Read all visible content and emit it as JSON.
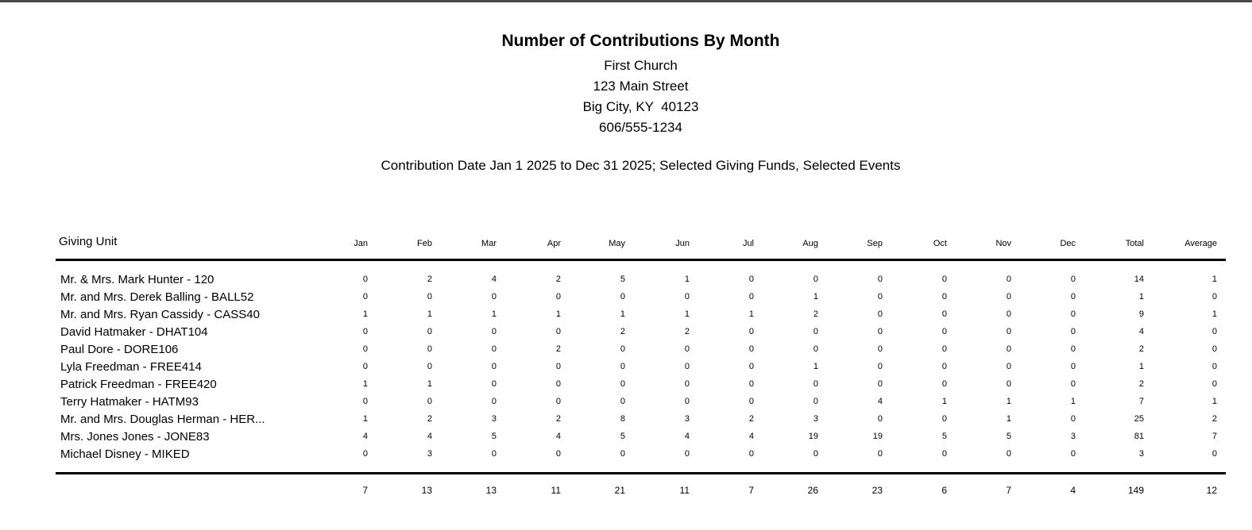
{
  "report": {
    "title": "Number of Contributions By Month",
    "org_name": "First Church",
    "address_line1": "123 Main Street",
    "address_line2": "Big City, KY  40123",
    "phone": "606/555-1234",
    "criteria": "Contribution Date Jan 1 2025 to Dec 31 2025; Selected Giving Funds, Selected Events"
  },
  "table": {
    "unit_header": "Giving Unit",
    "columns": [
      "Jan",
      "Feb",
      "Mar",
      "Apr",
      "May",
      "Jun",
      "Jul",
      "Aug",
      "Sep",
      "Oct",
      "Nov",
      "Dec",
      "Total",
      "Average"
    ],
    "rows": [
      {
        "name": "Mr. & Mrs. Mark Hunter - 120",
        "values": [
          0,
          2,
          4,
          2,
          5,
          1,
          0,
          0,
          0,
          0,
          0,
          0,
          14,
          1
        ]
      },
      {
        "name": "Mr. and Mrs. Derek Balling - BALL52",
        "values": [
          0,
          0,
          0,
          0,
          0,
          0,
          0,
          1,
          0,
          0,
          0,
          0,
          1,
          0
        ]
      },
      {
        "name": "Mr. and Mrs. Ryan Cassidy - CASS40",
        "values": [
          1,
          1,
          1,
          1,
          1,
          1,
          1,
          2,
          0,
          0,
          0,
          0,
          9,
          1
        ]
      },
      {
        "name": "David Hatmaker - DHAT104",
        "values": [
          0,
          0,
          0,
          0,
          2,
          2,
          0,
          0,
          0,
          0,
          0,
          0,
          4,
          0
        ]
      },
      {
        "name": "Paul Dore - DORE106",
        "values": [
          0,
          0,
          0,
          2,
          0,
          0,
          0,
          0,
          0,
          0,
          0,
          0,
          2,
          0
        ]
      },
      {
        "name": "Lyla Freedman - FREE414",
        "values": [
          0,
          0,
          0,
          0,
          0,
          0,
          0,
          1,
          0,
          0,
          0,
          0,
          1,
          0
        ]
      },
      {
        "name": "Patrick Freedman - FREE420",
        "values": [
          1,
          1,
          0,
          0,
          0,
          0,
          0,
          0,
          0,
          0,
          0,
          0,
          2,
          0
        ]
      },
      {
        "name": "Terry Hatmaker - HATM93",
        "values": [
          0,
          0,
          0,
          0,
          0,
          0,
          0,
          0,
          4,
          1,
          1,
          1,
          7,
          1
        ]
      },
      {
        "name": "Mr. and Mrs. Douglas Herman - HER...",
        "values": [
          1,
          2,
          3,
          2,
          8,
          3,
          2,
          3,
          0,
          0,
          1,
          0,
          25,
          2
        ]
      },
      {
        "name": "Mrs. Jones Jones - JONE83",
        "values": [
          4,
          4,
          5,
          4,
          5,
          4,
          4,
          19,
          19,
          5,
          5,
          3,
          81,
          7
        ]
      },
      {
        "name": "Michael Disney - MIKED",
        "values": [
          0,
          3,
          0,
          0,
          0,
          0,
          0,
          0,
          0,
          0,
          0,
          0,
          3,
          0
        ]
      }
    ],
    "totals": [
      7,
      13,
      13,
      11,
      21,
      11,
      7,
      26,
      23,
      6,
      7,
      4,
      149,
      12
    ]
  },
  "colors": {
    "top_rule": "#4a4a4a",
    "text": "#000000",
    "table_rule": "#000000"
  }
}
